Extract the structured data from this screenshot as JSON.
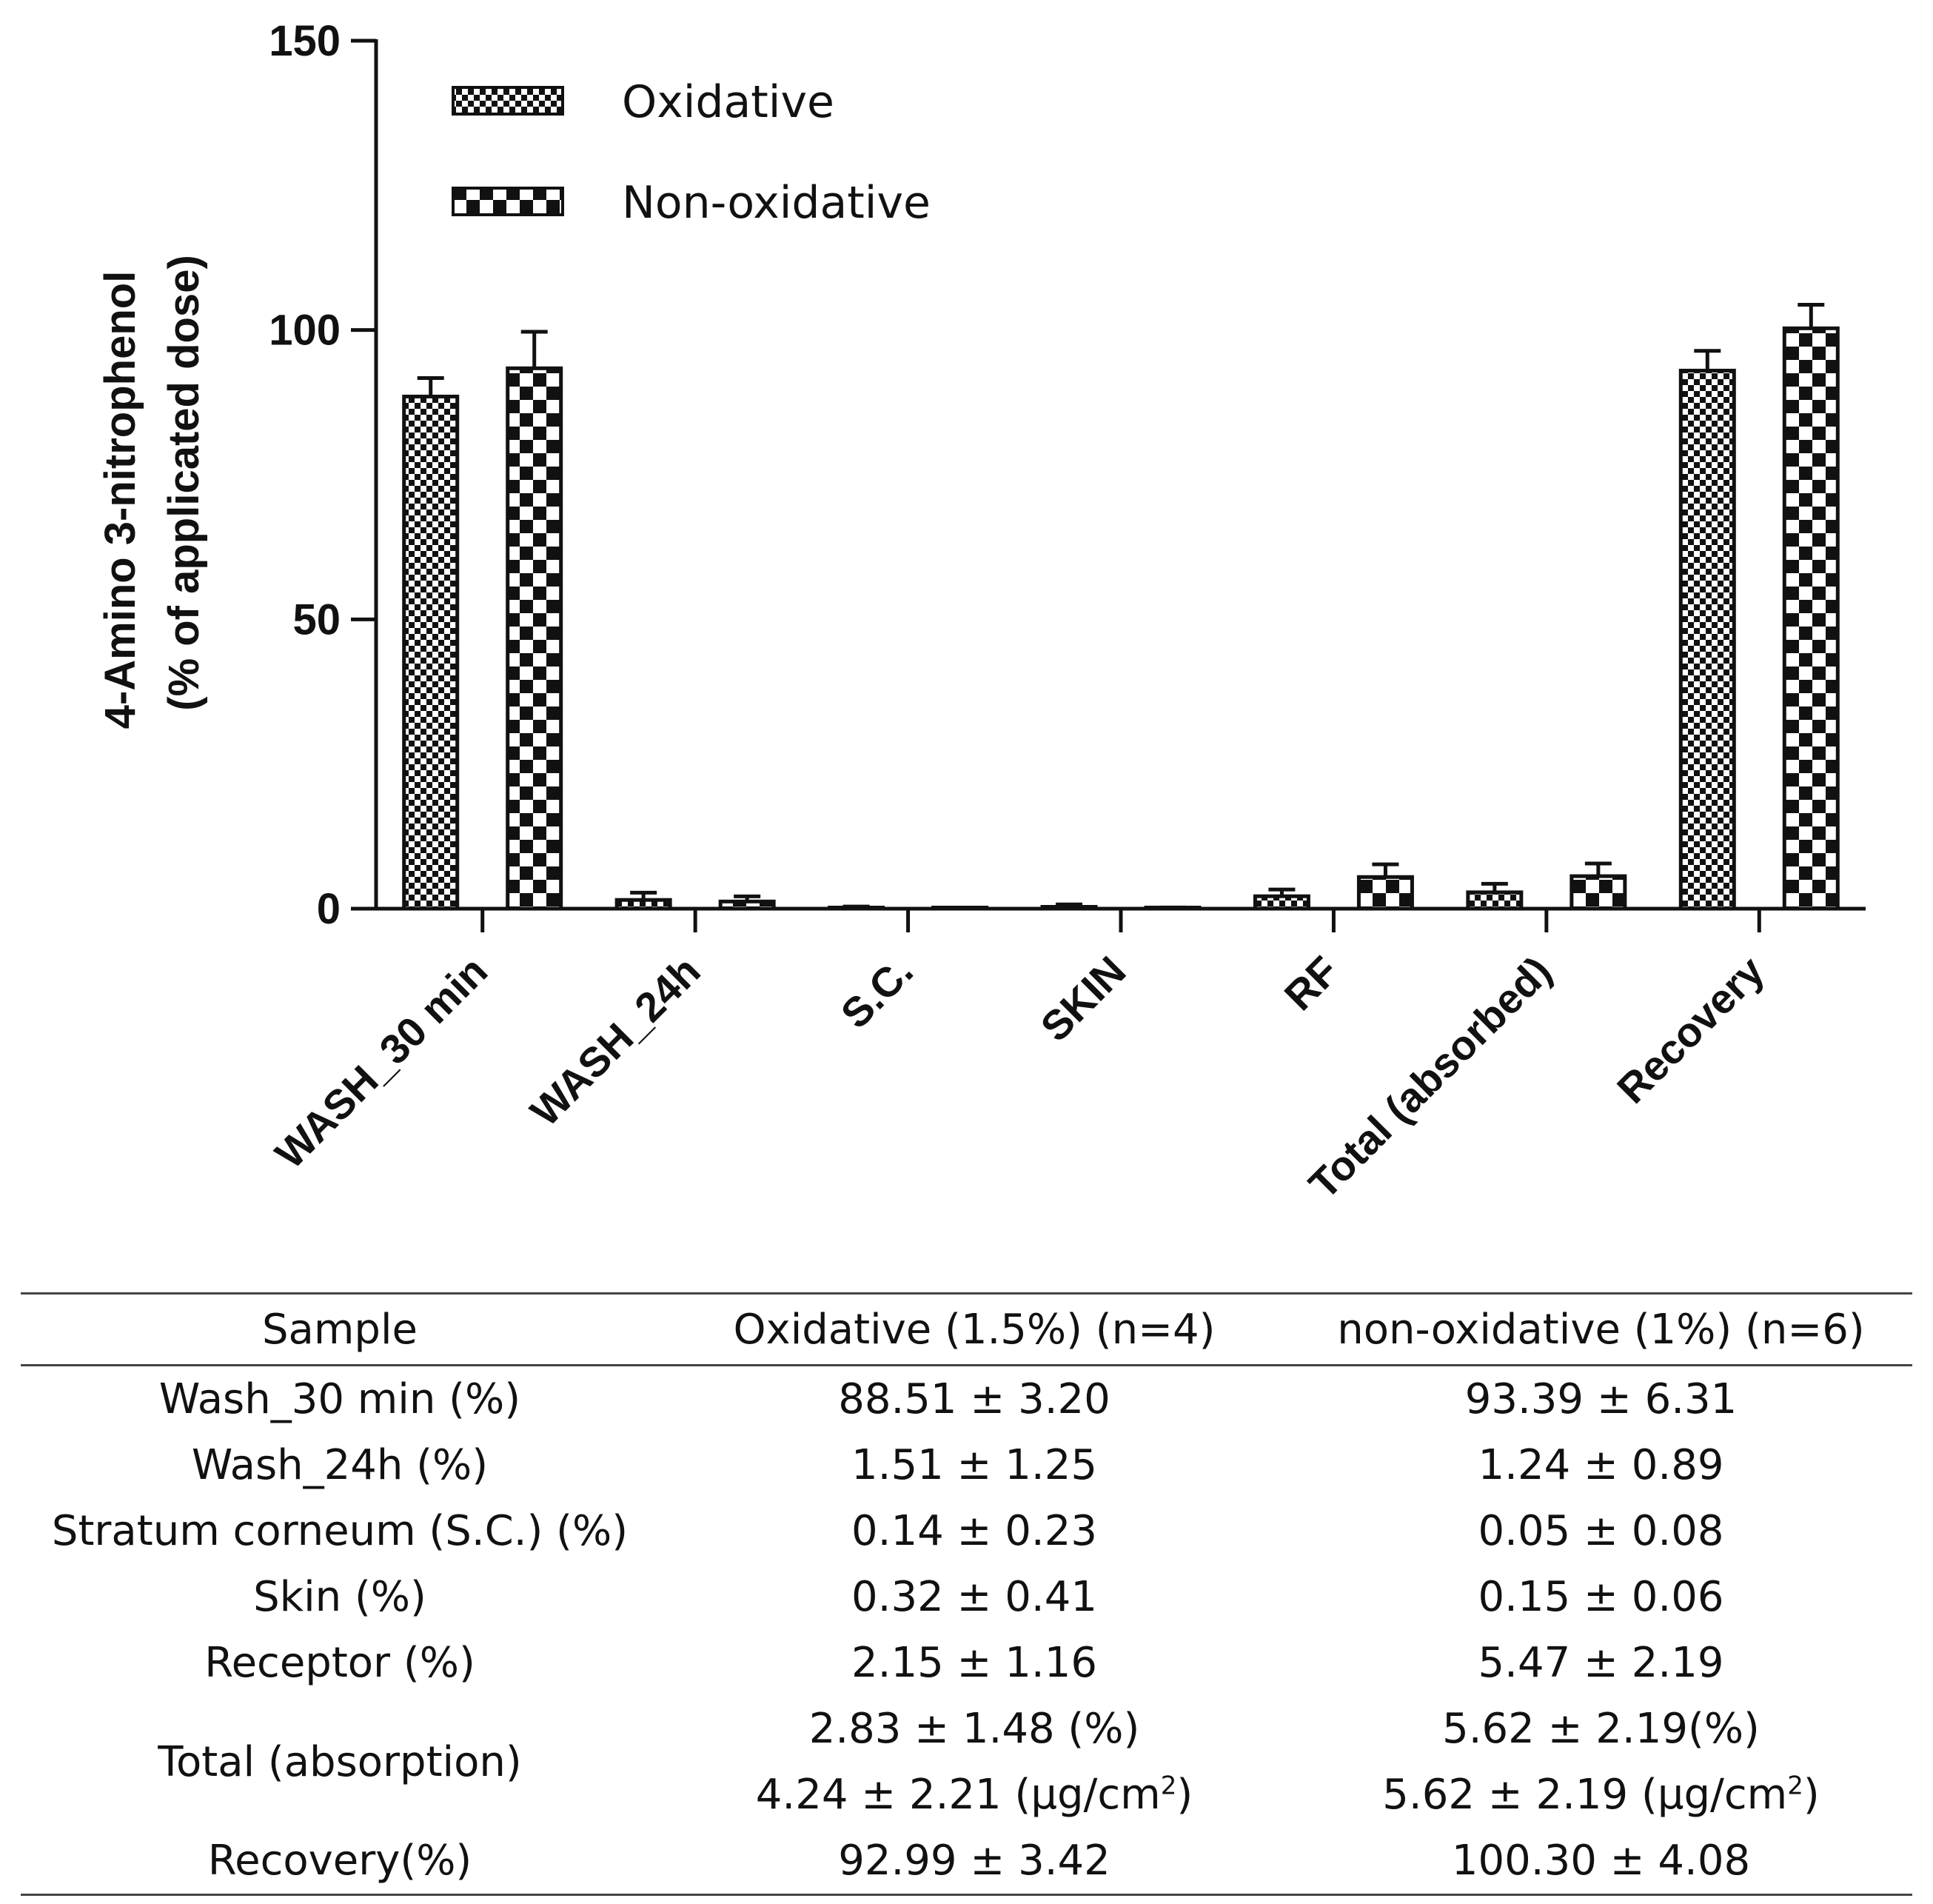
{
  "chart_data": {
    "type": "bar",
    "title": "",
    "xlabel": "",
    "ylabel_line1": "4-Amino 3-nitrophenol",
    "ylabel_line2": "(% of applicated dose)",
    "ylim": [
      0,
      150
    ],
    "yticks": [
      "0",
      "50",
      "100",
      "150"
    ],
    "yticks_values": [
      0,
      50,
      100,
      150
    ],
    "legend_position": "top-left",
    "categories": [
      "WASH_30 min",
      "WASH_24h",
      "S.C.",
      "SKIN",
      "RF",
      "Total (absorbed)",
      "Recovery"
    ],
    "series": [
      {
        "name": "Oxidative",
        "pattern": "fine-checker",
        "values": [
          88.51,
          1.51,
          0.14,
          0.32,
          2.15,
          2.83,
          92.99
        ],
        "errors": [
          3.2,
          1.25,
          0.23,
          0.41,
          1.16,
          1.48,
          3.42
        ]
      },
      {
        "name": "Non-oxidative",
        "pattern": "coarse-checker",
        "values": [
          93.39,
          1.24,
          0.05,
          0.15,
          5.47,
          5.62,
          100.3
        ],
        "errors": [
          6.31,
          0.89,
          0.08,
          0.06,
          2.19,
          2.19,
          4.08
        ]
      }
    ],
    "colors": {
      "ink": "#111111",
      "background": "#ffffff"
    }
  },
  "table": {
    "headers": [
      "Sample",
      "Oxidative (1.5%) (n=4)",
      "non-oxidative (1%) (n=6)"
    ],
    "rows": [
      {
        "label": "Wash_30 min (%)",
        "ox": "88.51 ± 3.20",
        "non": "93.39 ± 6.31"
      },
      {
        "label": "Wash_24h (%)",
        "ox": "1.51 ± 1.25",
        "non": "1.24 ± 0.89"
      },
      {
        "label": "Stratum corneum (S.C.) (%)",
        "ox": "0.14 ± 0.23",
        "non": "0.05 ± 0.08"
      },
      {
        "label": "Skin (%)",
        "ox": "0.32 ± 0.41",
        "non": "0.15 ± 0.06"
      },
      {
        "label": "Receptor (%)",
        "ox": "2.15 ± 1.16",
        "non": "5.47 ± 2.19"
      }
    ],
    "total": {
      "label": "Total (absorption)",
      "ox_pct": "2.83 ± 1.48 (%)",
      "non_pct": "5.62 ± 2.19(%)",
      "ox_mass_prefix": "4.24 ± 2.21 (μg/cm",
      "non_mass_prefix": "5.62 ± 2.19 (μg/cm",
      "superscript": "2",
      "closing": ")"
    },
    "recovery": {
      "label": "Recovery(%)",
      "ox": "92.99 ± 3.42",
      "non": "100.30 ± 4.08"
    }
  }
}
